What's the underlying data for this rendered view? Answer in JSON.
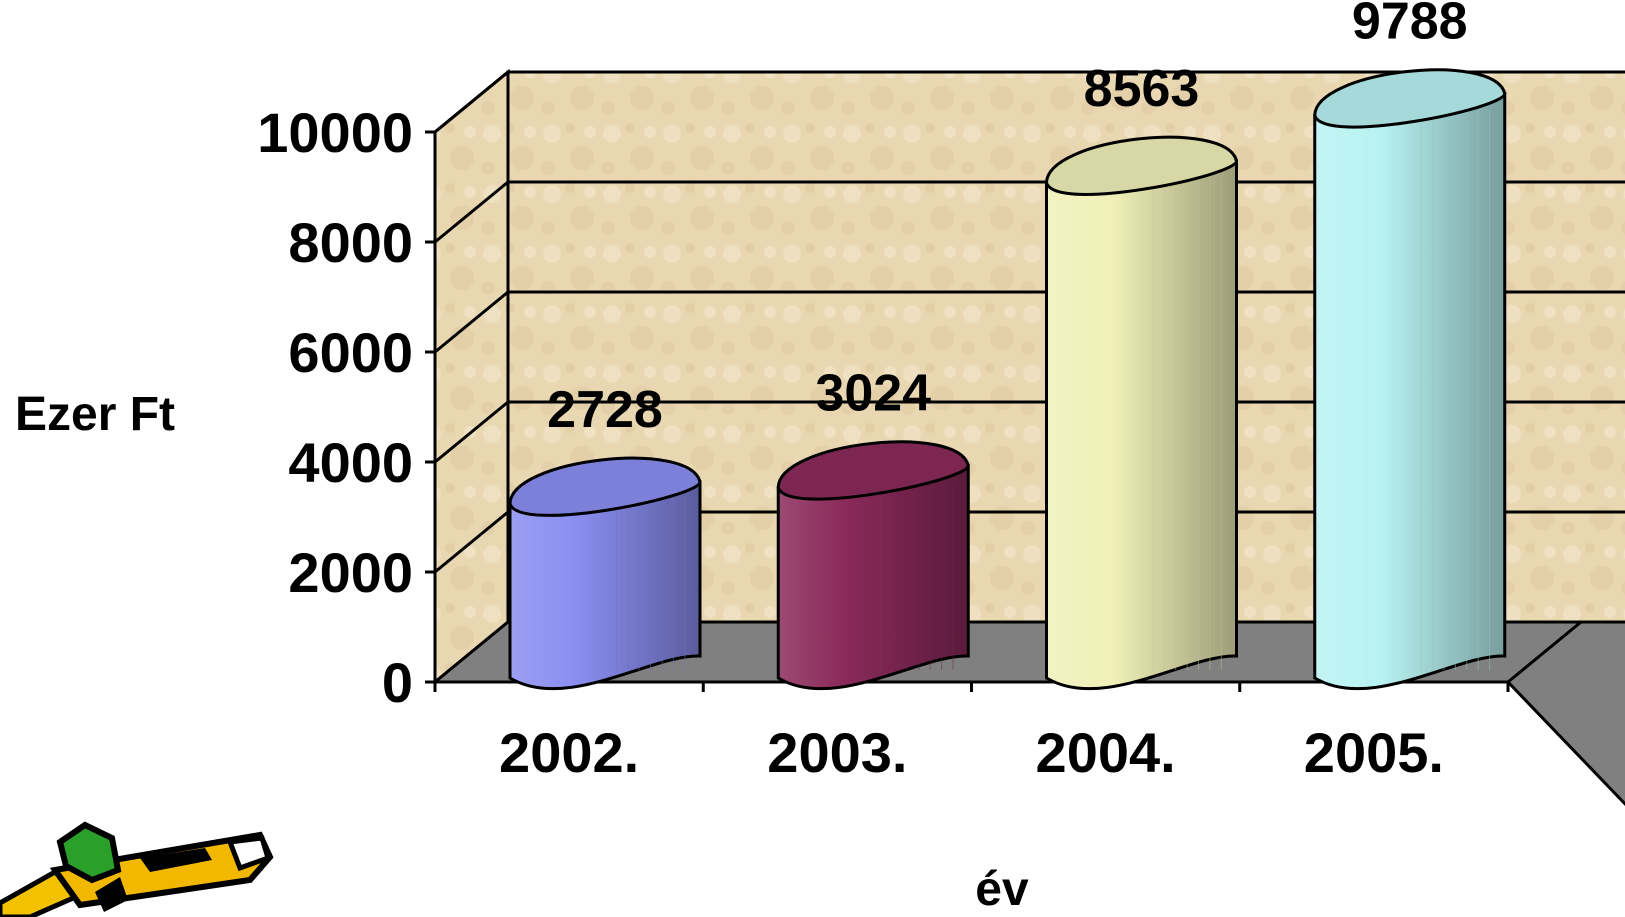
{
  "chart_data": {
    "type": "bar",
    "bar_shape": "cylinder-3d",
    "categories": [
      "2002.",
      "2003.",
      "2004.",
      "2005."
    ],
    "values": [
      2728,
      3024,
      8563,
      9788
    ],
    "value_labels": [
      "2728",
      "3024",
      "8563",
      "9788"
    ],
    "colors": [
      "#8a8ef0",
      "#8a2a5a",
      "#f0f0b8",
      "#b8f2f2"
    ],
    "title": "",
    "xlabel": "év",
    "ylabel": "Ezer Ft",
    "ylim": [
      0,
      10000
    ],
    "yticks": [
      0,
      2000,
      4000,
      6000,
      8000,
      10000
    ],
    "ytick_labels": [
      "0",
      "2000",
      "4000",
      "6000",
      "8000",
      "10000"
    ],
    "grid": true,
    "legend": "none",
    "wall_color": "#e8d6b0",
    "floor_color": "#808080"
  },
  "decoration": {
    "icon": "pencil-clipart-icon"
  }
}
